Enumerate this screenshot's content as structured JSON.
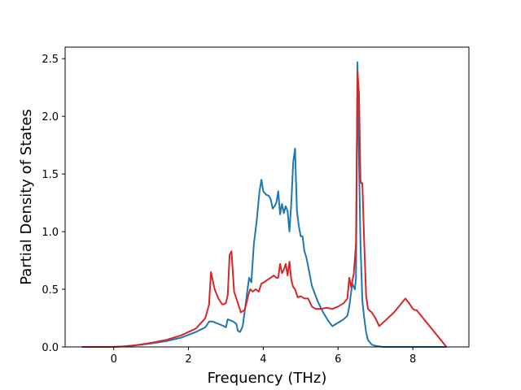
{
  "chart_data": {
    "type": "line",
    "title": "",
    "xlabel": "Frequency (THz)",
    "ylabel": "Partial Density of States",
    "xlim": [
      -1.3,
      9.5
    ],
    "ylim": [
      0,
      2.6
    ],
    "xticks": [
      0,
      2,
      4,
      6,
      8
    ],
    "yticks": [
      0.0,
      0.5,
      1.0,
      1.5,
      2.0,
      2.5
    ],
    "xtick_labels": [
      "0",
      "2",
      "4",
      "6",
      "8"
    ],
    "ytick_labels": [
      "0.0",
      "0.5",
      "1.0",
      "1.5",
      "2.0",
      "2.5"
    ],
    "grid": false,
    "legend": "none",
    "series": [
      {
        "color": "#1f77b4",
        "x": [
          -0.85,
          0.0,
          0.3,
          0.6,
          1.0,
          1.4,
          1.8,
          2.2,
          2.45,
          2.55,
          2.65,
          2.8,
          2.95,
          3.0,
          3.05,
          3.12,
          3.2,
          3.28,
          3.32,
          3.38,
          3.45,
          3.5,
          3.58,
          3.62,
          3.68,
          3.75,
          3.82,
          3.9,
          3.95,
          4.0,
          4.08,
          4.15,
          4.2,
          4.25,
          4.3,
          4.35,
          4.4,
          4.45,
          4.5,
          4.55,
          4.6,
          4.65,
          4.7,
          4.75,
          4.8,
          4.85,
          4.9,
          4.95,
          5.0,
          5.05,
          5.1,
          5.15,
          5.2,
          5.3,
          5.45,
          5.6,
          5.75,
          5.85,
          5.95,
          6.05,
          6.15,
          6.25,
          6.3,
          6.38,
          6.45,
          6.48,
          6.52,
          6.55,
          6.6,
          6.65,
          6.7,
          6.75,
          6.8,
          6.9,
          7.0,
          7.2,
          7.5,
          8.0,
          8.9
        ],
        "y": [
          0.0,
          0.0,
          0.005,
          0.015,
          0.03,
          0.05,
          0.08,
          0.13,
          0.17,
          0.22,
          0.22,
          0.2,
          0.18,
          0.17,
          0.24,
          0.23,
          0.22,
          0.2,
          0.14,
          0.13,
          0.18,
          0.3,
          0.5,
          0.6,
          0.56,
          0.9,
          1.08,
          1.35,
          1.45,
          1.35,
          1.32,
          1.31,
          1.28,
          1.2,
          1.22,
          1.25,
          1.35,
          1.15,
          1.24,
          1.16,
          1.22,
          1.18,
          1.0,
          1.25,
          1.6,
          1.72,
          1.18,
          1.05,
          0.96,
          0.96,
          0.83,
          0.78,
          0.7,
          0.53,
          0.4,
          0.3,
          0.22,
          0.18,
          0.2,
          0.22,
          0.24,
          0.27,
          0.35,
          0.55,
          0.5,
          0.6,
          2.47,
          1.8,
          0.9,
          0.4,
          0.25,
          0.13,
          0.06,
          0.02,
          0.01,
          0.0,
          0.0,
          0.0,
          0.0
        ]
      },
      {
        "color": "#d62728",
        "x": [
          -0.85,
          0.0,
          0.3,
          0.6,
          1.0,
          1.4,
          1.8,
          2.2,
          2.45,
          2.55,
          2.6,
          2.7,
          2.8,
          2.9,
          2.95,
          3.0,
          3.05,
          3.1,
          3.15,
          3.22,
          3.28,
          3.32,
          3.4,
          3.5,
          3.55,
          3.6,
          3.65,
          3.72,
          3.8,
          3.88,
          3.95,
          4.02,
          4.1,
          4.2,
          4.28,
          4.35,
          4.4,
          4.45,
          4.5,
          4.55,
          4.6,
          4.65,
          4.7,
          4.75,
          4.8,
          4.85,
          4.92,
          5.0,
          5.1,
          5.2,
          5.3,
          5.4,
          5.55,
          5.7,
          5.85,
          6.0,
          6.15,
          6.25,
          6.3,
          6.35,
          6.42,
          6.48,
          6.52,
          6.56,
          6.6,
          6.62,
          6.65,
          6.7,
          6.75,
          6.8,
          6.9,
          7.0,
          7.1,
          7.3,
          7.5,
          7.7,
          7.8,
          7.9,
          8.0,
          8.05,
          8.1,
          8.9
        ],
        "y": [
          0.0,
          0.0,
          0.005,
          0.015,
          0.035,
          0.06,
          0.1,
          0.16,
          0.25,
          0.37,
          0.65,
          0.5,
          0.42,
          0.37,
          0.37,
          0.38,
          0.45,
          0.8,
          0.83,
          0.48,
          0.42,
          0.38,
          0.3,
          0.32,
          0.38,
          0.45,
          0.5,
          0.48,
          0.5,
          0.48,
          0.55,
          0.56,
          0.58,
          0.6,
          0.62,
          0.6,
          0.6,
          0.72,
          0.64,
          0.67,
          0.72,
          0.62,
          0.74,
          0.58,
          0.52,
          0.5,
          0.43,
          0.44,
          0.42,
          0.42,
          0.35,
          0.33,
          0.33,
          0.34,
          0.33,
          0.35,
          0.38,
          0.42,
          0.6,
          0.52,
          0.63,
          0.9,
          2.39,
          2.2,
          1.45,
          1.42,
          1.42,
          0.9,
          0.45,
          0.33,
          0.3,
          0.25,
          0.18,
          0.24,
          0.3,
          0.38,
          0.42,
          0.38,
          0.33,
          0.32,
          0.32,
          0.0
        ]
      }
    ]
  }
}
